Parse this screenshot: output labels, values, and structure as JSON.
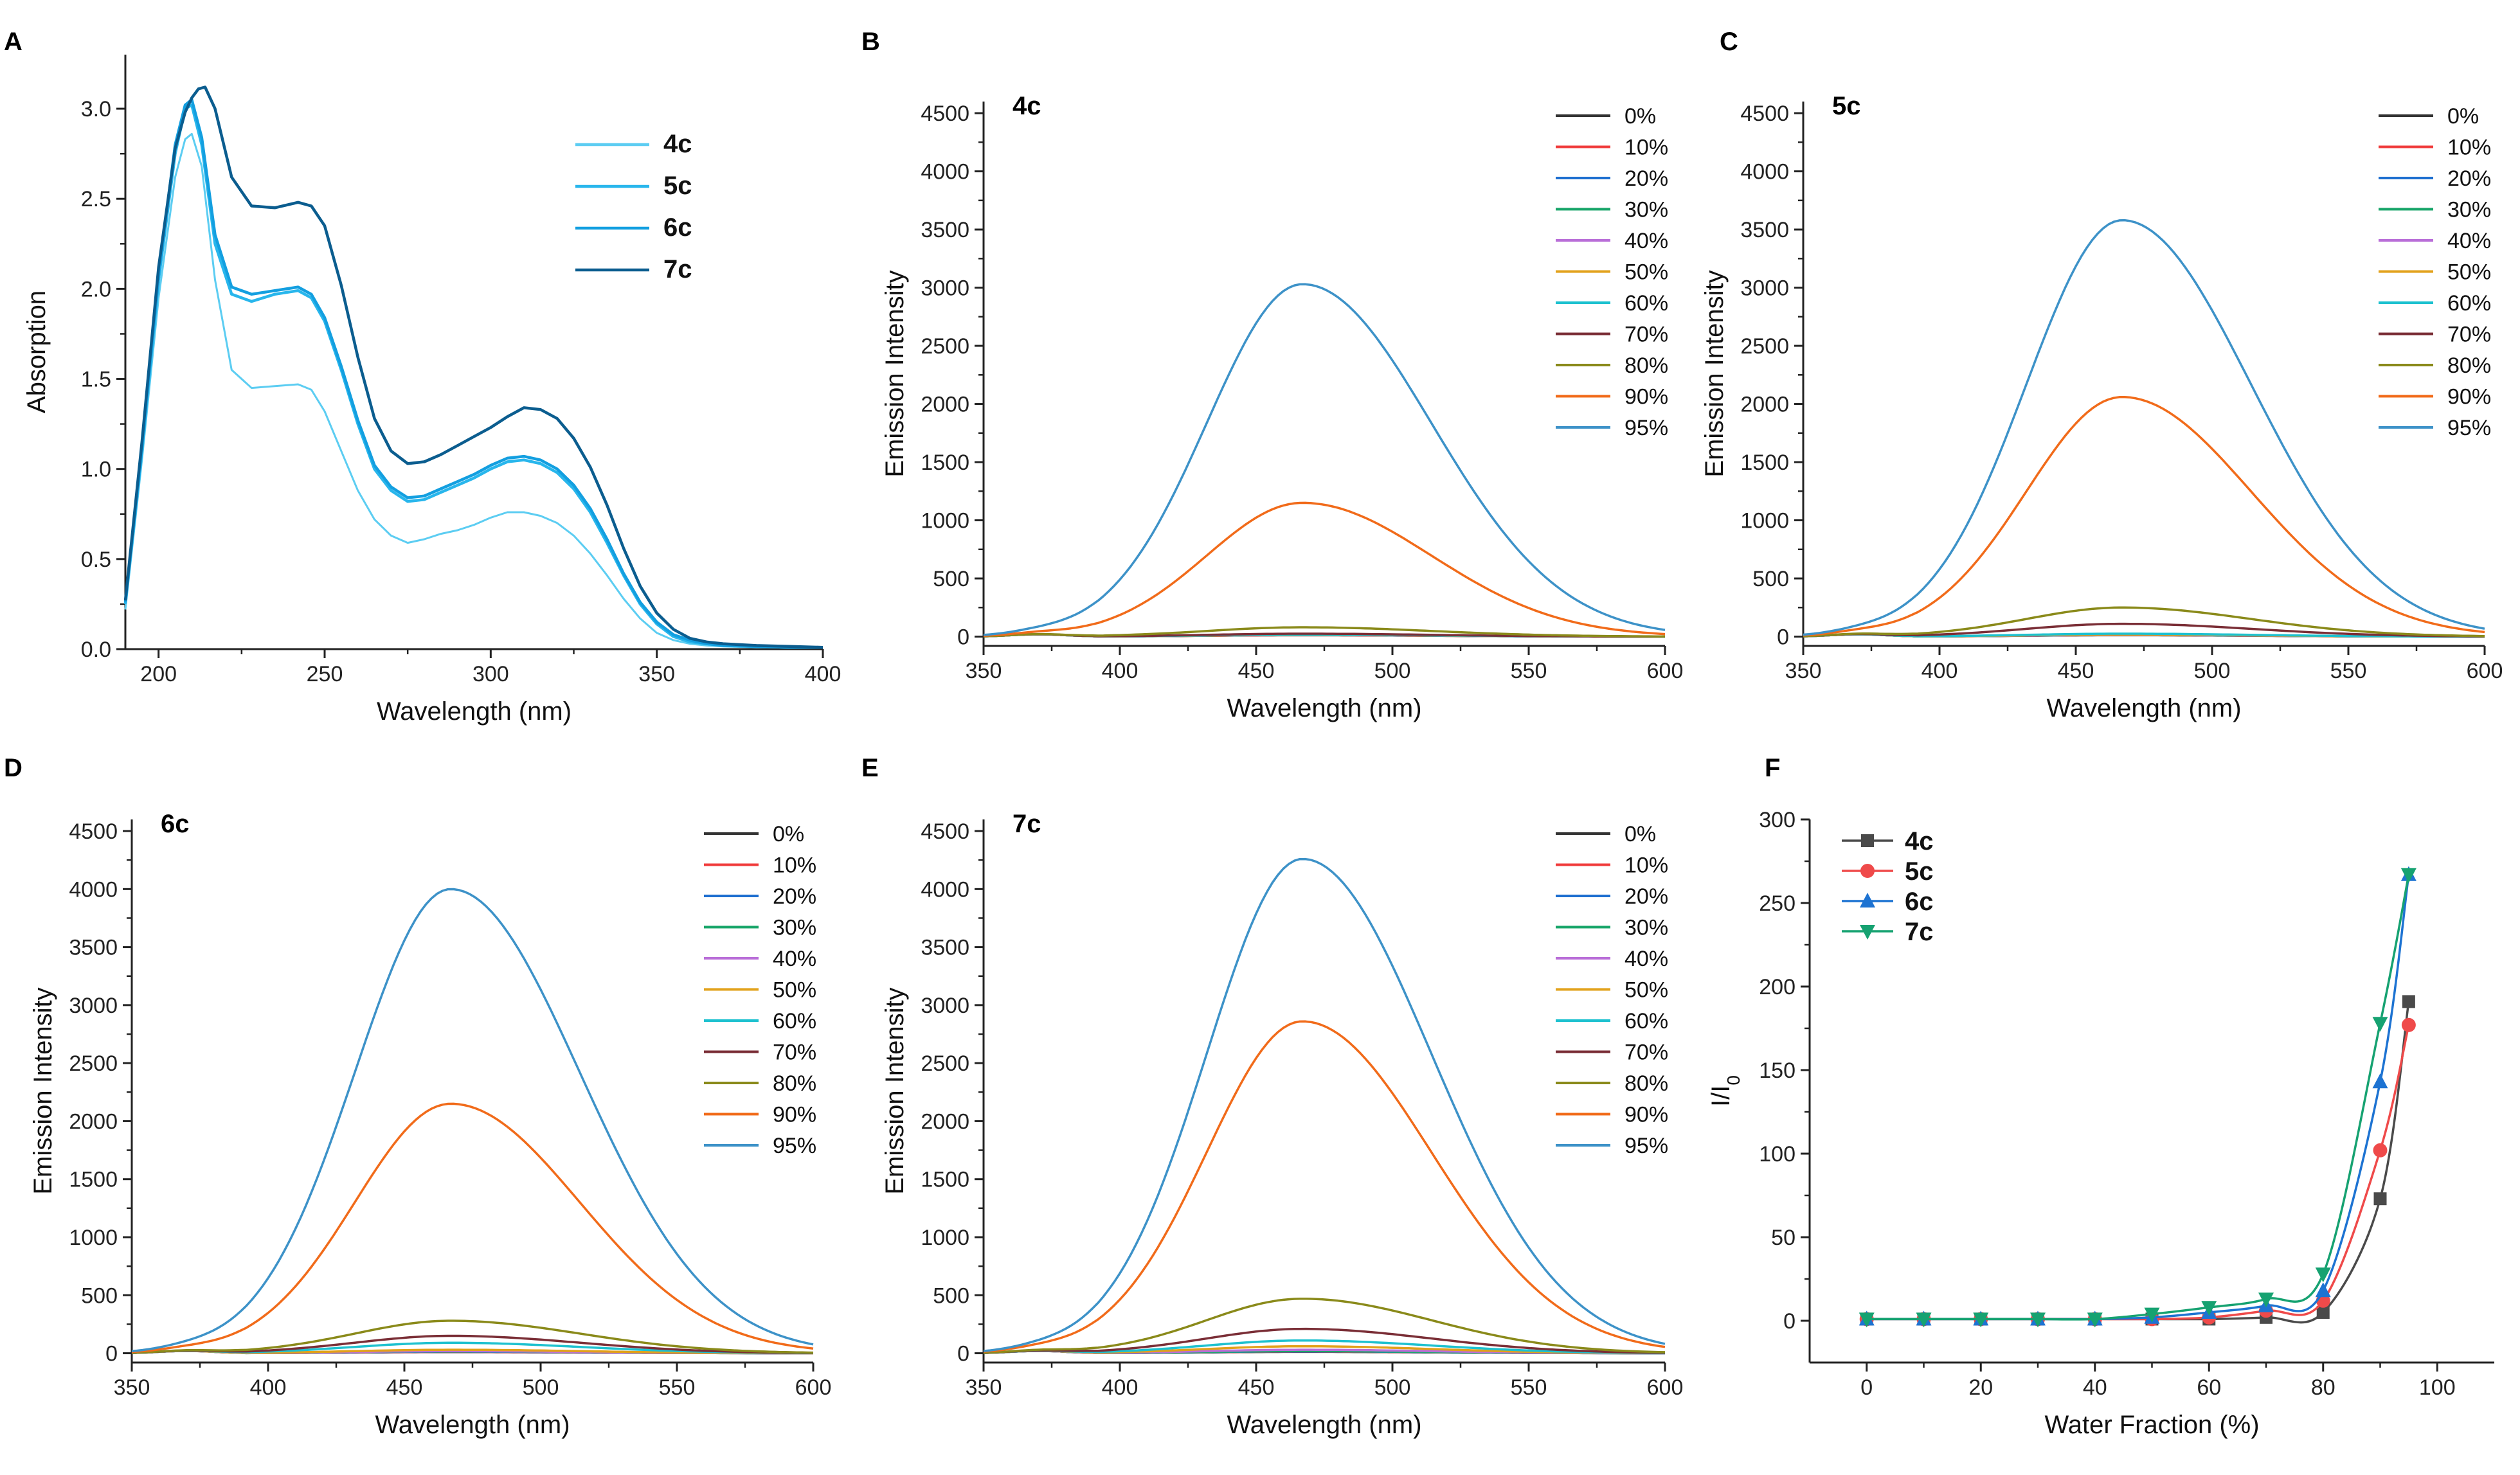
{
  "chart_data": [
    {
      "id": "A",
      "panel_label": "A",
      "type": "line",
      "title": "",
      "xlabel": "Wavelength (nm)",
      "ylabel": "Absorption",
      "xlim": [
        190,
        400
      ],
      "ylim": [
        0,
        3.3
      ],
      "xticks": [
        200,
        250,
        300,
        350,
        400
      ],
      "yticks": [
        0.0,
        0.5,
        1.0,
        1.5,
        2.0,
        2.5,
        3.0
      ],
      "ytick_labels": [
        "0.0",
        "0.5",
        "1.0",
        "1.5",
        "2.0",
        "2.5",
        "3.0"
      ],
      "legend_position": "top-right",
      "legend_bold": true,
      "series": [
        {
          "name": "4c",
          "color": "#5ccdf2",
          "x": [
            190,
            195,
            200,
            205,
            208,
            210,
            213,
            217,
            222,
            228,
            235,
            242,
            246,
            250,
            255,
            260,
            265,
            270,
            275,
            280,
            285,
            290,
            295,
            300,
            305,
            310,
            315,
            320,
            325,
            330,
            335,
            340,
            345,
            350,
            355,
            360,
            365,
            370,
            380,
            390,
            400
          ],
          "y": [
            0.22,
            1.05,
            1.95,
            2.62,
            2.83,
            2.86,
            2.68,
            2.05,
            1.55,
            1.45,
            1.46,
            1.47,
            1.44,
            1.32,
            1.1,
            0.88,
            0.72,
            0.63,
            0.59,
            0.61,
            0.64,
            0.66,
            0.69,
            0.73,
            0.76,
            0.76,
            0.74,
            0.7,
            0.63,
            0.53,
            0.41,
            0.28,
            0.17,
            0.09,
            0.05,
            0.03,
            0.02,
            0.015,
            0.01,
            0.01,
            0.01
          ]
        },
        {
          "name": "5c",
          "color": "#28b6ec",
          "x": [
            190,
            195,
            200,
            205,
            208,
            210,
            213,
            217,
            222,
            228,
            235,
            242,
            246,
            250,
            255,
            260,
            265,
            270,
            275,
            280,
            285,
            290,
            295,
            300,
            305,
            310,
            315,
            320,
            325,
            330,
            335,
            340,
            345,
            350,
            355,
            360,
            365,
            370,
            380,
            390,
            400
          ],
          "y": [
            0.25,
            1.1,
            2.05,
            2.75,
            3.0,
            3.02,
            2.8,
            2.25,
            1.97,
            1.93,
            1.97,
            1.99,
            1.95,
            1.82,
            1.55,
            1.25,
            1.0,
            0.88,
            0.82,
            0.83,
            0.87,
            0.91,
            0.95,
            1.0,
            1.04,
            1.05,
            1.03,
            0.98,
            0.89,
            0.76,
            0.59,
            0.41,
            0.25,
            0.14,
            0.07,
            0.04,
            0.03,
            0.02,
            0.015,
            0.01,
            0.01
          ]
        },
        {
          "name": "6c",
          "color": "#139fe0",
          "x": [
            190,
            195,
            200,
            205,
            208,
            210,
            213,
            217,
            222,
            228,
            235,
            242,
            246,
            250,
            255,
            260,
            265,
            270,
            275,
            280,
            285,
            290,
            295,
            300,
            305,
            310,
            315,
            320,
            325,
            330,
            335,
            340,
            345,
            350,
            355,
            360,
            365,
            370,
            380,
            390,
            400
          ],
          "y": [
            0.26,
            1.12,
            2.08,
            2.8,
            3.02,
            3.05,
            2.84,
            2.3,
            2.01,
            1.97,
            1.99,
            2.01,
            1.97,
            1.84,
            1.57,
            1.27,
            1.02,
            0.9,
            0.84,
            0.85,
            0.89,
            0.93,
            0.97,
            1.02,
            1.06,
            1.07,
            1.05,
            1.0,
            0.91,
            0.78,
            0.61,
            0.42,
            0.26,
            0.15,
            0.08,
            0.05,
            0.03,
            0.02,
            0.015,
            0.01,
            0.01
          ]
        },
        {
          "name": "7c",
          "color": "#0b5d8f",
          "x": [
            190,
            195,
            200,
            205,
            208,
            210,
            212,
            214,
            217,
            222,
            228,
            235,
            242,
            246,
            250,
            255,
            260,
            265,
            270,
            275,
            280,
            285,
            290,
            295,
            300,
            305,
            310,
            315,
            320,
            325,
            330,
            335,
            340,
            345,
            350,
            355,
            360,
            365,
            370,
            380,
            390,
            400
          ],
          "y": [
            0.27,
            1.15,
            2.12,
            2.78,
            2.98,
            3.06,
            3.11,
            3.12,
            3.0,
            2.62,
            2.46,
            2.45,
            2.48,
            2.46,
            2.35,
            2.02,
            1.62,
            1.28,
            1.1,
            1.03,
            1.04,
            1.08,
            1.13,
            1.18,
            1.23,
            1.29,
            1.34,
            1.33,
            1.28,
            1.17,
            1.01,
            0.8,
            0.56,
            0.35,
            0.2,
            0.11,
            0.06,
            0.04,
            0.03,
            0.02,
            0.015,
            0.01
          ]
        }
      ]
    },
    {
      "id": "B",
      "panel_label": "B",
      "type": "line",
      "title": "4c",
      "xlabel": "Wavelength (nm)",
      "ylabel": "Emission Intensity",
      "xlim": [
        350,
        600
      ],
      "ylim": [
        -80,
        4600
      ],
      "xticks": [
        350,
        400,
        450,
        500,
        550,
        600
      ],
      "yticks": [
        0,
        500,
        1000,
        1500,
        2000,
        2500,
        3000,
        3500,
        4000,
        4500
      ],
      "legend_position": "top-right",
      "peak_wavelength": 467,
      "series": [
        {
          "name": "0%",
          "color": "#333333",
          "peak": 12,
          "width": 45
        },
        {
          "name": "10%",
          "color": "#f03c3c",
          "peak": 12,
          "width": 45
        },
        {
          "name": "20%",
          "color": "#1e6fd0",
          "peak": 14,
          "width": 45
        },
        {
          "name": "30%",
          "color": "#1aa66a",
          "peak": 14,
          "width": 45
        },
        {
          "name": "40%",
          "color": "#b96ed8",
          "peak": 15,
          "width": 45
        },
        {
          "name": "50%",
          "color": "#e2a11a",
          "peak": 16,
          "width": 45
        },
        {
          "name": "60%",
          "color": "#1dc1cf",
          "peak": 18,
          "width": 45
        },
        {
          "name": "70%",
          "color": "#7a2e36",
          "peak": 25,
          "width": 45
        },
        {
          "name": "80%",
          "color": "#8a8a1a",
          "peak": 80,
          "width": 45
        },
        {
          "name": "90%",
          "color": "#f16b1a",
          "peak": 1150,
          "width": 45
        },
        {
          "name": "95%",
          "color": "#3d92c8",
          "peak": 3030,
          "width": 45
        }
      ]
    },
    {
      "id": "C",
      "panel_label": "C",
      "type": "line",
      "title": "5c",
      "xlabel": "Wavelength (nm)",
      "ylabel": "Emission Intensity",
      "xlim": [
        350,
        600
      ],
      "ylim": [
        -80,
        4600
      ],
      "xticks": [
        350,
        400,
        450,
        500,
        550,
        600
      ],
      "yticks": [
        0,
        500,
        1000,
        1500,
        2000,
        2500,
        3000,
        3500,
        4000,
        4500
      ],
      "legend_position": "top-right",
      "peak_wavelength": 467,
      "series": [
        {
          "name": "0%",
          "color": "#333333",
          "peak": 12,
          "width": 45
        },
        {
          "name": "10%",
          "color": "#f03c3c",
          "peak": 13,
          "width": 45
        },
        {
          "name": "20%",
          "color": "#1e6fd0",
          "peak": 14,
          "width": 45
        },
        {
          "name": "30%",
          "color": "#1aa66a",
          "peak": 15,
          "width": 45
        },
        {
          "name": "40%",
          "color": "#b96ed8",
          "peak": 16,
          "width": 45
        },
        {
          "name": "50%",
          "color": "#e2a11a",
          "peak": 18,
          "width": 45
        },
        {
          "name": "60%",
          "color": "#1dc1cf",
          "peak": 25,
          "width": 45
        },
        {
          "name": "70%",
          "color": "#7a2e36",
          "peak": 110,
          "width": 45
        },
        {
          "name": "80%",
          "color": "#8a8a1a",
          "peak": 250,
          "width": 45
        },
        {
          "name": "90%",
          "color": "#f16b1a",
          "peak": 2060,
          "width": 45
        },
        {
          "name": "95%",
          "color": "#3d92c8",
          "peak": 3580,
          "width": 45
        }
      ]
    },
    {
      "id": "D",
      "panel_label": "D",
      "type": "line",
      "title": "6c",
      "xlabel": "Wavelength (nm)",
      "ylabel": "Emission Intensity",
      "xlim": [
        350,
        600
      ],
      "ylim": [
        -80,
        4600
      ],
      "xticks": [
        350,
        400,
        450,
        500,
        550,
        600
      ],
      "yticks": [
        0,
        500,
        1000,
        1500,
        2000,
        2500,
        3000,
        3500,
        4000,
        4500
      ],
      "legend_position": "top-right",
      "peak_wavelength": 467,
      "series": [
        {
          "name": "0%",
          "color": "#333333",
          "peak": 10,
          "width": 45
        },
        {
          "name": "10%",
          "color": "#f03c3c",
          "peak": 12,
          "width": 45
        },
        {
          "name": "20%",
          "color": "#1e6fd0",
          "peak": 14,
          "width": 45
        },
        {
          "name": "30%",
          "color": "#1aa66a",
          "peak": 16,
          "width": 45
        },
        {
          "name": "40%",
          "color": "#b96ed8",
          "peak": 18,
          "width": 45
        },
        {
          "name": "50%",
          "color": "#e2a11a",
          "peak": 30,
          "width": 45
        },
        {
          "name": "60%",
          "color": "#1dc1cf",
          "peak": 90,
          "width": 45
        },
        {
          "name": "70%",
          "color": "#7a2e36",
          "peak": 150,
          "width": 45
        },
        {
          "name": "80%",
          "color": "#8a8a1a",
          "peak": 280,
          "width": 45
        },
        {
          "name": "90%",
          "color": "#f16b1a",
          "peak": 2150,
          "width": 45
        },
        {
          "name": "95%",
          "color": "#3d92c8",
          "peak": 4000,
          "width": 45
        }
      ]
    },
    {
      "id": "E",
      "panel_label": "E",
      "type": "line",
      "title": "7c",
      "xlabel": "Wavelength (nm)",
      "ylabel": "Emission Intensity",
      "xlim": [
        350,
        600
      ],
      "ylim": [
        -80,
        4600
      ],
      "xticks": [
        350,
        400,
        450,
        500,
        550,
        600
      ],
      "yticks": [
        0,
        500,
        1000,
        1500,
        2000,
        2500,
        3000,
        3500,
        4000,
        4500
      ],
      "legend_position": "top-right",
      "peak_wavelength": 467,
      "series": [
        {
          "name": "0%",
          "color": "#333333",
          "peak": 12,
          "width": 45
        },
        {
          "name": "10%",
          "color": "#f03c3c",
          "peak": 14,
          "width": 45
        },
        {
          "name": "20%",
          "color": "#1e6fd0",
          "peak": 16,
          "width": 45
        },
        {
          "name": "30%",
          "color": "#1aa66a",
          "peak": 18,
          "width": 45
        },
        {
          "name": "40%",
          "color": "#b96ed8",
          "peak": 30,
          "width": 45
        },
        {
          "name": "50%",
          "color": "#e2a11a",
          "peak": 60,
          "width": 45
        },
        {
          "name": "60%",
          "color": "#1dc1cf",
          "peak": 110,
          "width": 45
        },
        {
          "name": "70%",
          "color": "#7a2e36",
          "peak": 210,
          "width": 45
        },
        {
          "name": "80%",
          "color": "#8a8a1a",
          "peak": 470,
          "width": 45
        },
        {
          "name": "90%",
          "color": "#f16b1a",
          "peak": 2860,
          "width": 45
        },
        {
          "name": "95%",
          "color": "#3d92c8",
          "peak": 4260,
          "width": 45
        }
      ]
    },
    {
      "id": "F",
      "panel_label": "F",
      "type": "line",
      "title": "",
      "xlabel": "Water Fraction (%)",
      "ylabel": "I/I",
      "ylabel_subscript": "0",
      "xlim": [
        -10,
        110
      ],
      "ylim": [
        -25,
        300
      ],
      "xticks": [
        0,
        20,
        40,
        60,
        80,
        100
      ],
      "yticks": [
        0,
        50,
        100,
        150,
        200,
        250,
        300
      ],
      "legend_position": "top-left",
      "legend_bold": true,
      "x": [
        0,
        10,
        20,
        30,
        40,
        50,
        60,
        70,
        80,
        90,
        95
      ],
      "series": [
        {
          "name": "4c",
          "color": "#4a4a4a",
          "marker": "square",
          "values": [
            1,
            1,
            1,
            1,
            1,
            1,
            1,
            2,
            5,
            73,
            191
          ]
        },
        {
          "name": "5c",
          "color": "#ef4a4a",
          "marker": "circle",
          "values": [
            1,
            1,
            1,
            1,
            1,
            1,
            2,
            6,
            12,
            102,
            177
          ]
        },
        {
          "name": "6c",
          "color": "#1d73d2",
          "marker": "triangle-up",
          "values": [
            1,
            1,
            1,
            1,
            1,
            2,
            5,
            9,
            18,
            143,
            267
          ]
        },
        {
          "name": "7c",
          "color": "#16a271",
          "marker": "triangle-down",
          "values": [
            1,
            1,
            1,
            1,
            1,
            4,
            8,
            13,
            28,
            178,
            267
          ]
        }
      ]
    }
  ]
}
